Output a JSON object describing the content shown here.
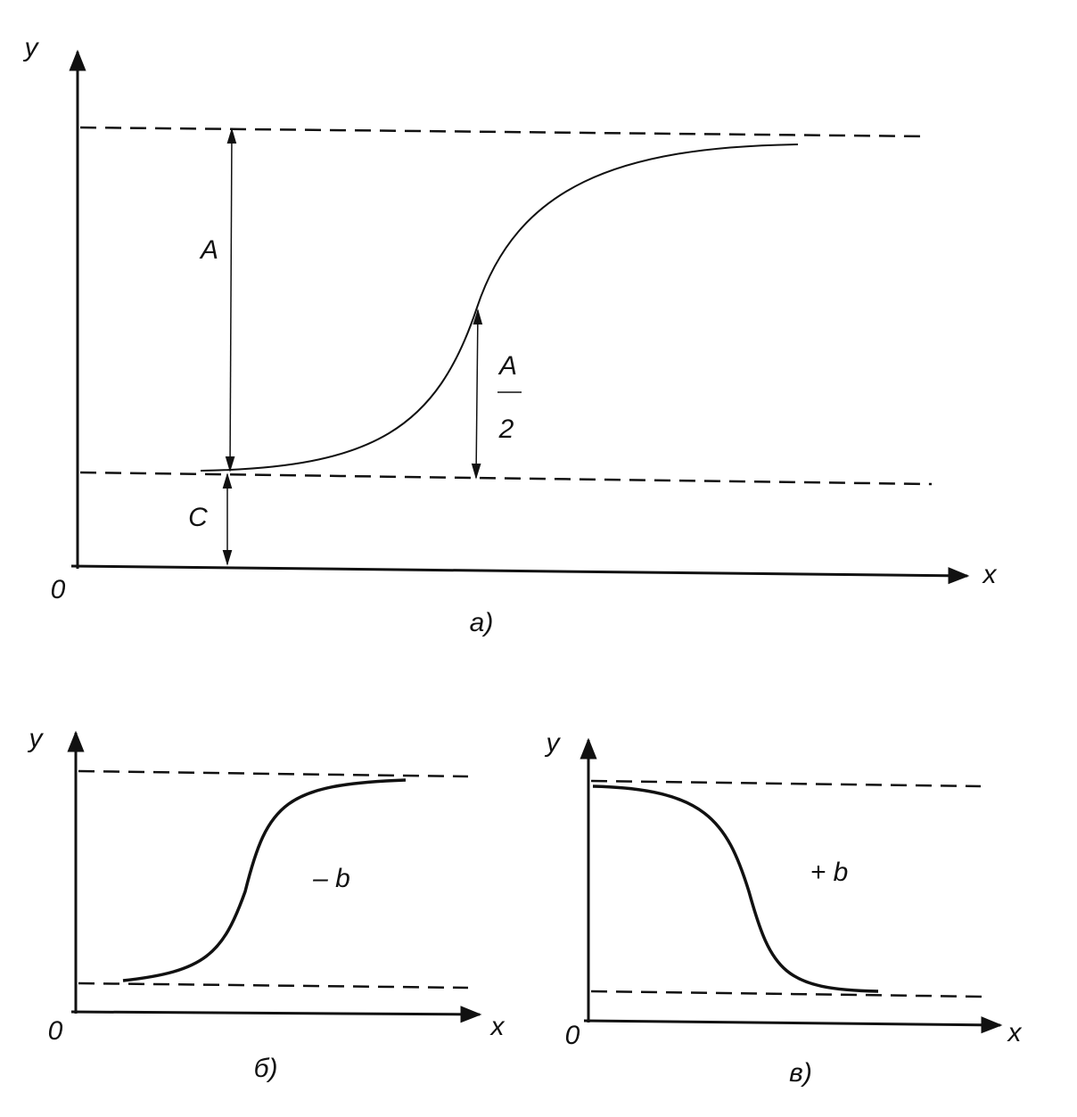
{
  "panels": [
    {
      "caption": "а)",
      "y_label": "y",
      "x_label": "x",
      "origin": "0",
      "amplitude": "A",
      "offset": "C",
      "half": {
        "numerator": "A",
        "denominator": "2"
      }
    },
    {
      "caption": "б)",
      "y_label": "y",
      "x_label": "x",
      "origin": "0",
      "sign": "– b"
    },
    {
      "caption": "в)",
      "y_label": "y",
      "x_label": "x",
      "origin": "0",
      "sign": "+ b"
    }
  ]
}
